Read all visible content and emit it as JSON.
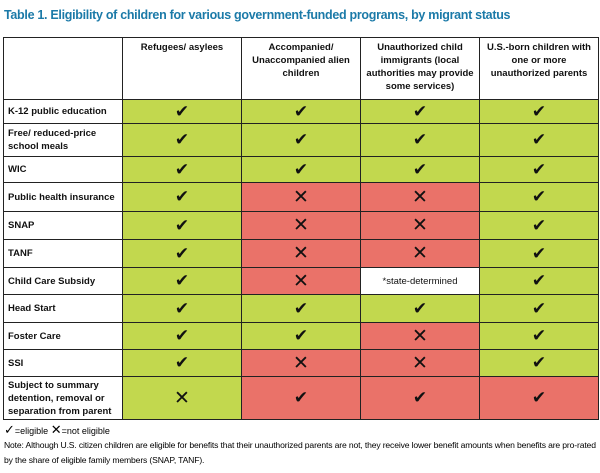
{
  "title": "Table 1. Eligibility of children for various government-funded programs, by migrant status",
  "colors": {
    "eligible_bg": "#c2d84e",
    "not_eligible_bg": "#ea7269",
    "title": "#1b7aa8"
  },
  "columns": [
    "",
    "Refugees/ asylees",
    "Accompanied/ Unaccompanied alien children",
    "Unauthorized child immigrants (local authorities may provide some services)",
    "U.S.-born children with one or more unauthorized parents"
  ],
  "rows": [
    {
      "label": "K-12 public education",
      "cells": [
        [
          "green",
          "check"
        ],
        [
          "green",
          "check"
        ],
        [
          "green",
          "check"
        ],
        [
          "green",
          "check"
        ]
      ]
    },
    {
      "label": "Free/ reduced-price school meals",
      "cells": [
        [
          "green",
          "check"
        ],
        [
          "green",
          "check"
        ],
        [
          "green",
          "check"
        ],
        [
          "green",
          "check"
        ]
      ]
    },
    {
      "label": "WIC",
      "cells": [
        [
          "green",
          "check"
        ],
        [
          "green",
          "check"
        ],
        [
          "green",
          "check"
        ],
        [
          "green",
          "check"
        ]
      ]
    },
    {
      "label": "Public health insurance",
      "cells": [
        [
          "green",
          "check"
        ],
        [
          "red",
          "x"
        ],
        [
          "red",
          "x"
        ],
        [
          "green",
          "check"
        ]
      ]
    },
    {
      "label": "SNAP",
      "cells": [
        [
          "green",
          "check"
        ],
        [
          "red",
          "x"
        ],
        [
          "red",
          "x"
        ],
        [
          "green",
          "check"
        ]
      ]
    },
    {
      "label": "TANF",
      "cells": [
        [
          "green",
          "check"
        ],
        [
          "red",
          "x"
        ],
        [
          "red",
          "x"
        ],
        [
          "green",
          "check"
        ]
      ]
    },
    {
      "label": "Child Care Subsidy",
      "cells": [
        [
          "green",
          "check"
        ],
        [
          "red",
          "x"
        ],
        [
          "white",
          "*state-determined"
        ],
        [
          "green",
          "check"
        ]
      ]
    },
    {
      "label": "Head Start",
      "cells": [
        [
          "green",
          "check"
        ],
        [
          "green",
          "check"
        ],
        [
          "green",
          "check"
        ],
        [
          "green",
          "check"
        ]
      ]
    },
    {
      "label": "Foster Care",
      "cells": [
        [
          "green",
          "check"
        ],
        [
          "green",
          "check"
        ],
        [
          "red",
          "x"
        ],
        [
          "green",
          "check"
        ]
      ]
    },
    {
      "label": "SSI",
      "cells": [
        [
          "green",
          "check"
        ],
        [
          "red",
          "x"
        ],
        [
          "red",
          "x"
        ],
        [
          "green",
          "check"
        ]
      ]
    },
    {
      "label": "Subject to summary detention, removal or separation from parent",
      "cells": [
        [
          "green",
          "x"
        ],
        [
          "red",
          "check"
        ],
        [
          "red",
          "check"
        ],
        [
          "red",
          "check"
        ]
      ]
    }
  ],
  "legend": {
    "eligible": "=eligible",
    "not_eligible": "=not eligible"
  },
  "note": "Note: Although U.S. citizen children are eligible for benefits that their unauthorized parents are not, they receive lower benefit amounts when benefits are pro-rated by the share of eligible family members (SNAP, TANF)."
}
